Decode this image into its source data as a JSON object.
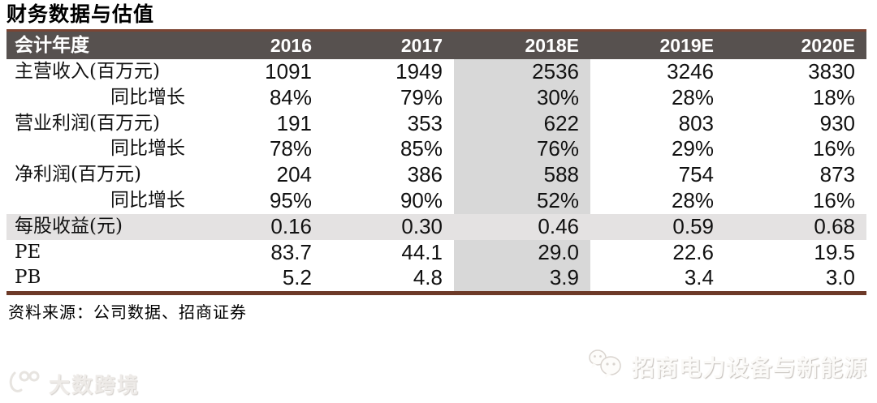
{
  "title": "财务数据与估值",
  "table": {
    "header": {
      "label": "会计年度",
      "years": [
        "2016",
        "2017",
        "2018E",
        "2019E",
        "2020E"
      ]
    },
    "rows": [
      {
        "label": "主营收入(百万元)",
        "indent": false,
        "highlight": false,
        "values": [
          "1091",
          "1949",
          "2536",
          "3246",
          "3830"
        ]
      },
      {
        "label": "同比增长",
        "indent": true,
        "highlight": false,
        "values": [
          "84%",
          "79%",
          "30%",
          "28%",
          "18%"
        ]
      },
      {
        "label": "营业利润(百万元)",
        "indent": false,
        "highlight": false,
        "values": [
          "191",
          "353",
          "622",
          "803",
          "930"
        ]
      },
      {
        "label": "同比增长",
        "indent": true,
        "highlight": false,
        "values": [
          "78%",
          "85%",
          "76%",
          "29%",
          "16%"
        ]
      },
      {
        "label": "净利润(百万元)",
        "indent": false,
        "highlight": false,
        "values": [
          "204",
          "386",
          "588",
          "754",
          "873"
        ]
      },
      {
        "label": "同比增长",
        "indent": true,
        "highlight": false,
        "values": [
          "95%",
          "90%",
          "52%",
          "28%",
          "16%"
        ]
      },
      {
        "label": "每股收益(元)",
        "indent": false,
        "highlight": true,
        "values": [
          "0.16",
          "0.30",
          "0.46",
          "0.59",
          "0.68"
        ]
      },
      {
        "label": "PE",
        "indent": false,
        "highlight": false,
        "values": [
          "83.7",
          "44.1",
          "29.0",
          "22.6",
          "19.5"
        ]
      },
      {
        "label": "PB",
        "indent": false,
        "highlight": false,
        "values": [
          "5.2",
          "4.8",
          "3.9",
          "3.4",
          "3.0"
        ]
      }
    ],
    "highlight_column": "2018E",
    "highlight_row": "每股收益(元)"
  },
  "source_note": "资料来源：公司数据、招商证券",
  "watermarks": {
    "right": {
      "icon": "wechat-icon",
      "text": "招商电力设备与新能源"
    },
    "left": {
      "icon": "dashu-kuajing-logo-icon",
      "text": "大数跨境"
    }
  },
  "colors": {
    "header_bg": "#57514f",
    "header_text": "#ffffff",
    "top_rule": "#7b4433",
    "bottom_rule": "#6d3a28",
    "column_highlight": "#d8d8d8",
    "row_highlight": "#e4e2e2"
  }
}
